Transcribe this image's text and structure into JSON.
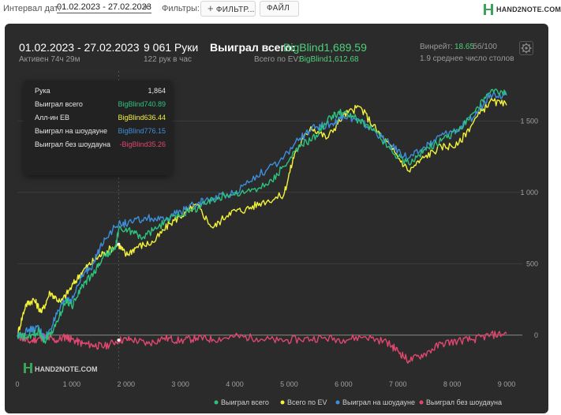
{
  "toolbar": {
    "interval_label": "Интервал дат:",
    "interval_value": "01.02.2023 - 27.02.2023",
    "filters_label": "Фильтры:",
    "filter_button": "ФИЛЬТР...",
    "file_button": "ФАЙЛ",
    "brand": "HAND2NOTE.COM"
  },
  "summary": {
    "date_range": "01.02.2023 - 27.02.2023",
    "active_time": "Активен 74ч 29м",
    "hands": "9 061 Руки",
    "hands_per_hour": "122 рук в час",
    "won_total_label": "Выиграл всего:",
    "won_total_value": "BigBlind1,689.59",
    "ev_label": "Всего по EV:",
    "ev_value": "BigBlind1,612.68",
    "winrate_label": "Винрейт:",
    "winrate_value": "18.65",
    "winrate_unit": "бб/100",
    "avg_tables": "1.9 среднее число столов"
  },
  "tooltip": {
    "rows": [
      {
        "label": "Рука",
        "value": "1,864",
        "color": "#e6e6e6"
      },
      {
        "label": "Выиграл всего",
        "value": "BigBlind740.89",
        "color": "#2ec27e"
      },
      {
        "label": "Алл-ин EB",
        "value": "BigBlind636.44",
        "color": "#f2f23a"
      },
      {
        "label": "Выиграл на шоудауне",
        "value": "BigBlind776.15",
        "color": "#3d8fdb"
      },
      {
        "label": "Выиграл без шоудауна",
        "value": "-BigBlind35.26",
        "color": "#e0476f"
      }
    ]
  },
  "watermark": "HAND2NOTE.COM",
  "colors": {
    "won_total": "#2ec27e",
    "ev": "#f2f23a",
    "showdown": "#3d8fdb",
    "non_showdown": "#e0476f",
    "grid": "#3c3c3c",
    "zero_line": "#8a8a8a"
  },
  "chart_data": {
    "type": "line",
    "xlim": [
      0,
      9000
    ],
    "ylim": [
      -250,
      1850
    ],
    "x_ticks": [
      0,
      1000,
      2000,
      3000,
      4000,
      5000,
      6000,
      7000,
      8000,
      9000
    ],
    "x_tick_labels": [
      "0",
      "1 000",
      "2 000",
      "3 000",
      "4 000",
      "5 000",
      "6 000",
      "7 000",
      "8 000",
      "9 000"
    ],
    "y_ticks": [
      0,
      500,
      1000,
      1500
    ],
    "y_tick_labels": [
      "0",
      "500",
      "1 000",
      "1 500"
    ],
    "legend_position": "bottom-right",
    "grid": true,
    "cursor_x": 1864,
    "series": [
      {
        "name": "Выиграл всего",
        "key": "won_total",
        "points": [
          [
            0,
            0
          ],
          [
            200,
            -20
          ],
          [
            400,
            30
          ],
          [
            500,
            -40
          ],
          [
            700,
            60
          ],
          [
            900,
            250
          ],
          [
            1000,
            200
          ],
          [
            1200,
            350
          ],
          [
            1400,
            430
          ],
          [
            1600,
            560
          ],
          [
            1800,
            600
          ],
          [
            1864,
            741
          ],
          [
            2100,
            730
          ],
          [
            2300,
            680
          ],
          [
            2600,
            760
          ],
          [
            2900,
            840
          ],
          [
            3200,
            870
          ],
          [
            3500,
            930
          ],
          [
            3800,
            980
          ],
          [
            4200,
            1000
          ],
          [
            4600,
            1050
          ],
          [
            4900,
            1180
          ],
          [
            5200,
            1320
          ],
          [
            5500,
            1400
          ],
          [
            5800,
            1540
          ],
          [
            6000,
            1560
          ],
          [
            6300,
            1500
          ],
          [
            6600,
            1420
          ],
          [
            6900,
            1280
          ],
          [
            7200,
            1200
          ],
          [
            7500,
            1300
          ],
          [
            7800,
            1360
          ],
          [
            8100,
            1430
          ],
          [
            8400,
            1560
          ],
          [
            8700,
            1700
          ],
          [
            9000,
            1690
          ]
        ]
      },
      {
        "name": "Всего по EV",
        "key": "ev",
        "points": [
          [
            0,
            0
          ],
          [
            150,
            210
          ],
          [
            300,
            250
          ],
          [
            450,
            160
          ],
          [
            600,
            300
          ],
          [
            800,
            230
          ],
          [
            1000,
            340
          ],
          [
            1200,
            450
          ],
          [
            1400,
            520
          ],
          [
            1600,
            580
          ],
          [
            1864,
            636
          ],
          [
            2000,
            560
          ],
          [
            2200,
            620
          ],
          [
            2500,
            650
          ],
          [
            2800,
            780
          ],
          [
            3100,
            860
          ],
          [
            3300,
            910
          ],
          [
            3600,
            750
          ],
          [
            3900,
            860
          ],
          [
            4200,
            880
          ],
          [
            4500,
            930
          ],
          [
            4900,
            980
          ],
          [
            5100,
            1270
          ],
          [
            5400,
            1460
          ],
          [
            5700,
            1380
          ],
          [
            6000,
            1540
          ],
          [
            6300,
            1600
          ],
          [
            6600,
            1440
          ],
          [
            6900,
            1300
          ],
          [
            7200,
            1150
          ],
          [
            7500,
            1250
          ],
          [
            7800,
            1320
          ],
          [
            8100,
            1330
          ],
          [
            8400,
            1500
          ],
          [
            8700,
            1640
          ],
          [
            9000,
            1610
          ]
        ]
      },
      {
        "name": "Выиграл на шоудауне",
        "key": "showdown",
        "points": [
          [
            0,
            0
          ],
          [
            200,
            30
          ],
          [
            400,
            50
          ],
          [
            500,
            -30
          ],
          [
            700,
            120
          ],
          [
            900,
            260
          ],
          [
            1000,
            240
          ],
          [
            1200,
            420
          ],
          [
            1400,
            500
          ],
          [
            1600,
            680
          ],
          [
            1864,
            776
          ],
          [
            2100,
            790
          ],
          [
            2400,
            820
          ],
          [
            2700,
            800
          ],
          [
            3000,
            870
          ],
          [
            3300,
            920
          ],
          [
            3600,
            960
          ],
          [
            4000,
            1000
          ],
          [
            4400,
            1120
          ],
          [
            4800,
            1200
          ],
          [
            5200,
            1380
          ],
          [
            5500,
            1460
          ],
          [
            5800,
            1480
          ],
          [
            6000,
            1540
          ],
          [
            6300,
            1500
          ],
          [
            6600,
            1420
          ],
          [
            6900,
            1320
          ],
          [
            7200,
            1240
          ],
          [
            7500,
            1310
          ],
          [
            7800,
            1400
          ],
          [
            8100,
            1440
          ],
          [
            8400,
            1530
          ],
          [
            8700,
            1690
          ],
          [
            9000,
            1680
          ]
        ]
      },
      {
        "name": "Выиграл без шоудауна",
        "key": "non_showdown",
        "points": [
          [
            0,
            0
          ],
          [
            200,
            -50
          ],
          [
            400,
            -20
          ],
          [
            500,
            -10
          ],
          [
            700,
            -40
          ],
          [
            900,
            -10
          ],
          [
            1000,
            -30
          ],
          [
            1200,
            -60
          ],
          [
            1400,
            -70
          ],
          [
            1600,
            -80
          ],
          [
            1864,
            -35
          ],
          [
            2100,
            -30
          ],
          [
            2400,
            -60
          ],
          [
            2700,
            -20
          ],
          [
            3000,
            -40
          ],
          [
            3300,
            -20
          ],
          [
            3600,
            -30
          ],
          [
            4000,
            -10
          ],
          [
            4400,
            -20
          ],
          [
            4800,
            -40
          ],
          [
            5200,
            -30
          ],
          [
            5600,
            -20
          ],
          [
            6000,
            -30
          ],
          [
            6400,
            -10
          ],
          [
            6800,
            -50
          ],
          [
            7000,
            -110
          ],
          [
            7200,
            -180
          ],
          [
            7500,
            -130
          ],
          [
            7800,
            -60
          ],
          [
            8100,
            -40
          ],
          [
            8400,
            -30
          ],
          [
            8700,
            0
          ],
          [
            9000,
            10
          ]
        ]
      }
    ]
  }
}
